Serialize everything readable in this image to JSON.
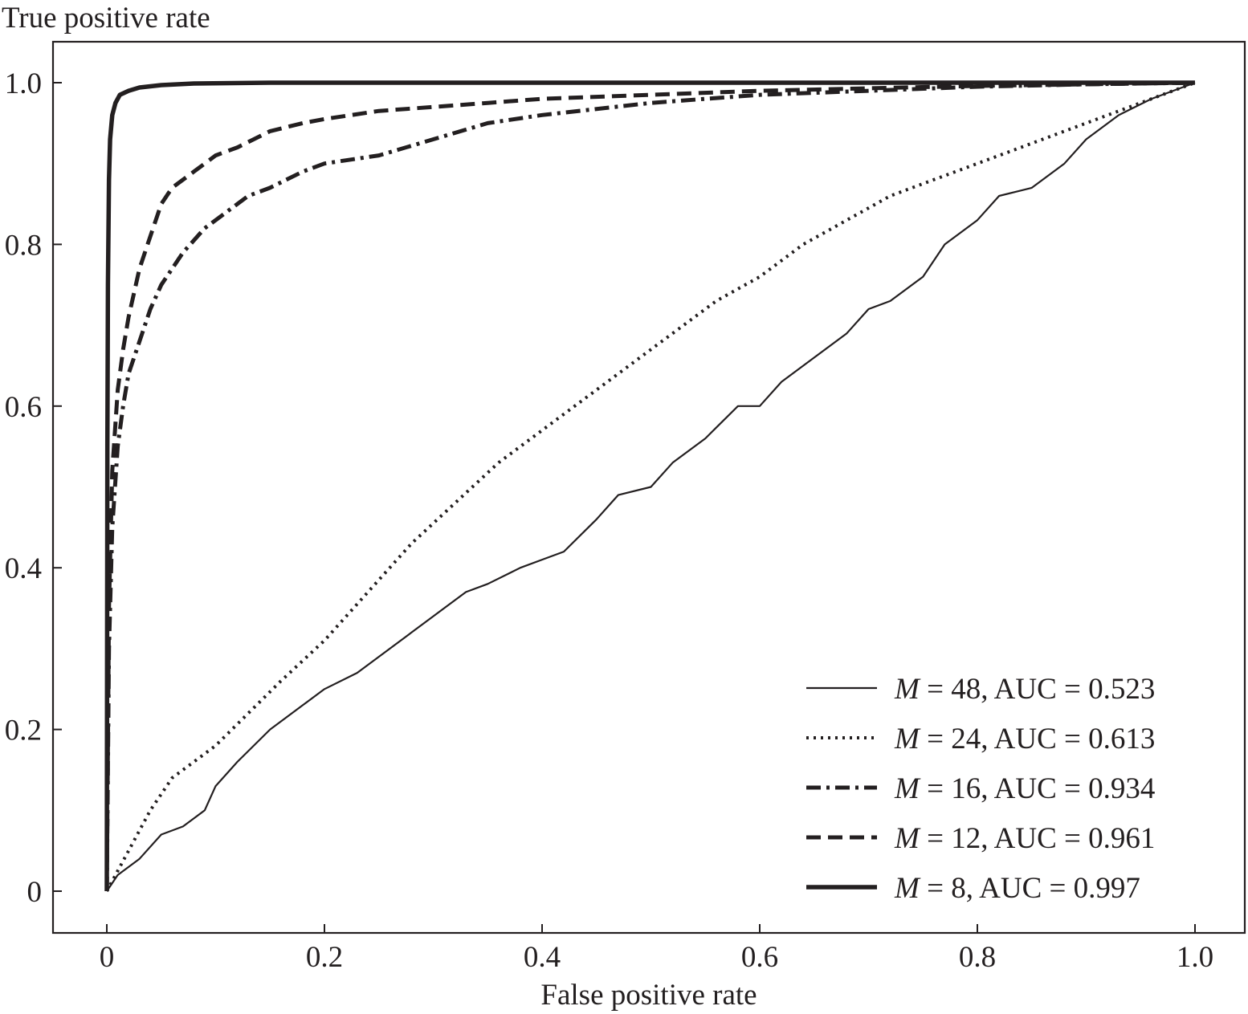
{
  "chart_data": {
    "type": "line",
    "xlabel": "False positive rate",
    "ylabel": "True positive rate",
    "xlim": [
      -0.05,
      1.05
    ],
    "ylim": [
      -0.1,
      1.05
    ],
    "x_ticks": [
      0,
      0.2,
      0.4,
      0.6,
      0.8,
      1.0
    ],
    "x_tick_labels": [
      "0",
      "0.2",
      "0.4",
      "0.6",
      "0.8",
      "1.0"
    ],
    "y_ticks": [
      0,
      0.2,
      0.4,
      0.6,
      0.8,
      1.0
    ],
    "y_tick_labels": [
      "0",
      "0.2",
      "0.4",
      "0.6",
      "0.8",
      "1.0"
    ],
    "grid": false,
    "legend_position": "bottom-right",
    "series": [
      {
        "name": "M = 48, AUC = 0.523",
        "legend_var": "M",
        "legend_rest": " = 48, AUC = 0.523",
        "style": "solid-thin",
        "x": [
          0,
          0.01,
          0.03,
          0.05,
          0.07,
          0.09,
          0.1,
          0.12,
          0.15,
          0.18,
          0.2,
          0.23,
          0.25,
          0.28,
          0.3,
          0.33,
          0.35,
          0.38,
          0.4,
          0.42,
          0.45,
          0.47,
          0.5,
          0.52,
          0.55,
          0.58,
          0.6,
          0.62,
          0.65,
          0.68,
          0.7,
          0.72,
          0.75,
          0.77,
          0.8,
          0.82,
          0.85,
          0.88,
          0.9,
          0.93,
          0.96,
          1.0
        ],
        "y": [
          0,
          0.02,
          0.04,
          0.07,
          0.08,
          0.1,
          0.13,
          0.16,
          0.2,
          0.23,
          0.25,
          0.27,
          0.29,
          0.32,
          0.34,
          0.37,
          0.38,
          0.4,
          0.41,
          0.42,
          0.46,
          0.49,
          0.5,
          0.53,
          0.56,
          0.6,
          0.6,
          0.63,
          0.66,
          0.69,
          0.72,
          0.73,
          0.76,
          0.8,
          0.83,
          0.86,
          0.87,
          0.9,
          0.93,
          0.96,
          0.98,
          1.0
        ]
      },
      {
        "name": "M = 24, AUC = 0.613",
        "legend_var": "M",
        "legend_rest": " = 24, AUC = 0.613",
        "style": "dotted",
        "x": [
          0,
          0.02,
          0.04,
          0.06,
          0.08,
          0.1,
          0.13,
          0.16,
          0.2,
          0.24,
          0.28,
          0.32,
          0.36,
          0.4,
          0.44,
          0.48,
          0.5,
          0.53,
          0.56,
          0.6,
          0.64,
          0.68,
          0.72,
          0.76,
          0.8,
          0.84,
          0.88,
          0.92,
          0.96,
          1.0
        ],
        "y": [
          0,
          0.05,
          0.1,
          0.14,
          0.16,
          0.18,
          0.22,
          0.26,
          0.31,
          0.37,
          0.43,
          0.48,
          0.53,
          0.57,
          0.61,
          0.65,
          0.67,
          0.7,
          0.73,
          0.76,
          0.8,
          0.83,
          0.86,
          0.88,
          0.9,
          0.92,
          0.94,
          0.96,
          0.98,
          1.0
        ]
      },
      {
        "name": "M = 16, AUC = 0.934",
        "legend_var": "M",
        "legend_rest": " = 16, AUC = 0.934",
        "style": "dash-dot",
        "x": [
          0,
          0.002,
          0.005,
          0.01,
          0.015,
          0.02,
          0.03,
          0.04,
          0.05,
          0.07,
          0.09,
          0.11,
          0.13,
          0.15,
          0.18,
          0.2,
          0.25,
          0.3,
          0.35,
          0.4,
          0.5,
          0.6,
          0.7,
          0.8,
          0.9,
          1.0
        ],
        "y": [
          0,
          0.3,
          0.45,
          0.55,
          0.6,
          0.64,
          0.68,
          0.72,
          0.75,
          0.79,
          0.82,
          0.84,
          0.86,
          0.87,
          0.89,
          0.9,
          0.91,
          0.93,
          0.95,
          0.96,
          0.975,
          0.985,
          0.99,
          0.995,
          0.998,
          1.0
        ]
      },
      {
        "name": "M = 12, AUC = 0.961",
        "legend_var": "M",
        "legend_rest": " = 12, AUC = 0.961",
        "style": "dashed",
        "x": [
          0,
          0.002,
          0.005,
          0.01,
          0.015,
          0.02,
          0.03,
          0.04,
          0.05,
          0.06,
          0.08,
          0.1,
          0.12,
          0.15,
          0.18,
          0.2,
          0.25,
          0.3,
          0.35,
          0.4,
          0.5,
          0.6,
          0.7,
          0.8,
          0.9,
          1.0
        ],
        "y": [
          0,
          0.35,
          0.52,
          0.62,
          0.67,
          0.71,
          0.77,
          0.81,
          0.85,
          0.87,
          0.89,
          0.91,
          0.92,
          0.94,
          0.95,
          0.955,
          0.965,
          0.97,
          0.975,
          0.98,
          0.985,
          0.99,
          0.993,
          0.996,
          0.998,
          1.0
        ]
      },
      {
        "name": "M = 8, AUC = 0.997",
        "legend_var": "M",
        "legend_rest": " = 8, AUC = 0.997",
        "style": "solid-thick",
        "x": [
          0,
          0.0005,
          0.001,
          0.002,
          0.003,
          0.005,
          0.008,
          0.012,
          0.02,
          0.03,
          0.05,
          0.08,
          0.15,
          1.0
        ],
        "y": [
          0,
          0.55,
          0.75,
          0.88,
          0.93,
          0.96,
          0.975,
          0.985,
          0.99,
          0.994,
          0.997,
          0.999,
          1.0,
          1.0
        ]
      }
    ]
  }
}
